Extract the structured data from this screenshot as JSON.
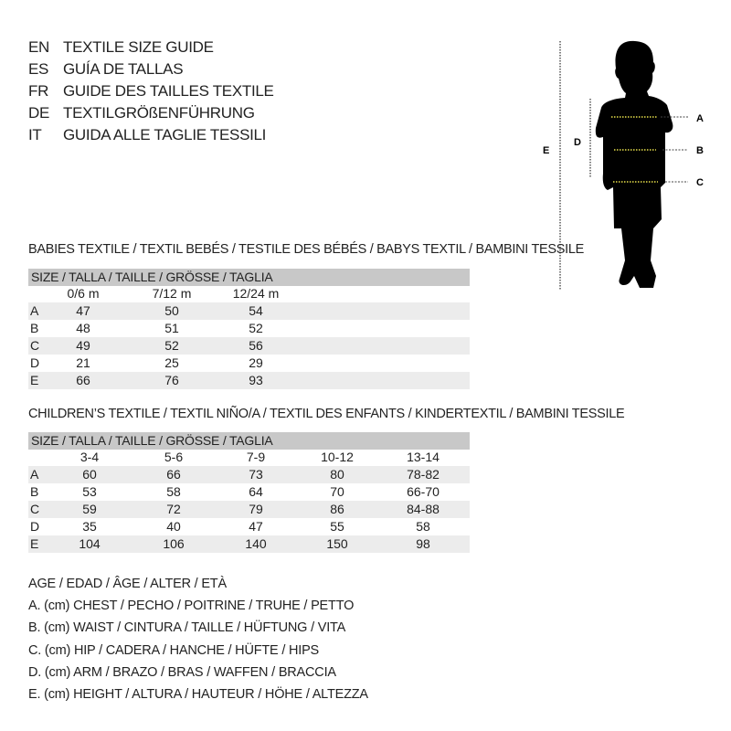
{
  "titles": [
    {
      "code": "EN",
      "text": "TEXTILE SIZE GUIDE"
    },
    {
      "code": "ES",
      "text": "GUÍA DE TALLAS"
    },
    {
      "code": "FR",
      "text": "GUIDE DES TAILLES TEXTILE"
    },
    {
      "code": "DE",
      "text": "TEXTILGRÖßENFÜHRUNG"
    },
    {
      "code": "IT",
      "text": "GUIDA ALLE TAGLIE TESSILI"
    }
  ],
  "figure": {
    "labels": {
      "A": "A",
      "B": "B",
      "C": "C",
      "D": "D",
      "E": "E"
    },
    "icon": "child-silhouette-icon",
    "marker_color": "#e8e04a"
  },
  "babies": {
    "title": "BABIES TEXTILE / TEXTIL BEBÉS / TESTILE DES BÉBÉS / BABYS TEXTIL / BAMBINI TESSILE",
    "header": "SIZE / TALLA / TAILLE / GRÖSSE / TAGLIA",
    "columns": [
      "0/6 m",
      "7/12 m",
      "12/24 m"
    ],
    "rows": [
      {
        "label": "A",
        "values": [
          "47",
          "50",
          "54"
        ]
      },
      {
        "label": "B",
        "values": [
          "48",
          "51",
          "52"
        ]
      },
      {
        "label": "C",
        "values": [
          "49",
          "52",
          "56"
        ]
      },
      {
        "label": "D",
        "values": [
          "21",
          "25",
          "29"
        ]
      },
      {
        "label": "E",
        "values": [
          "66",
          "76",
          "93"
        ]
      }
    ]
  },
  "children": {
    "title": "CHILDREN’S TEXTILE / TEXTIL NIÑO/A / TEXTIL DES ENFANTS / KINDERTEXTIL / BAMBINI TESSILE",
    "header": "SIZE / TALLA / TAILLE / GRÖSSE / TAGLIA",
    "columns": [
      "3-4",
      "5-6",
      "7-9",
      "10-12",
      "13-14"
    ],
    "rows": [
      {
        "label": "A",
        "values": [
          "60",
          "66",
          "73",
          "80",
          "78-82"
        ]
      },
      {
        "label": "B",
        "values": [
          "53",
          "58",
          "64",
          "70",
          "66-70"
        ]
      },
      {
        "label": "C",
        "values": [
          "59",
          "72",
          "79",
          "86",
          "84-88"
        ]
      },
      {
        "label": "D",
        "values": [
          "35",
          "40",
          "47",
          "55",
          "58"
        ]
      },
      {
        "label": "E",
        "values": [
          "104",
          "106",
          "140",
          "150",
          "98"
        ]
      }
    ]
  },
  "legend": [
    "AGE / EDAD / ÂGE / ALTER / ETÀ",
    "A. (cm) CHEST / PECHO / POITRINE / TRUHE / PETTO",
    "B. (cm) WAIST / CINTURA / TAILLE / HÜFTUNG / VITA",
    "C. (cm) HIP / CADERA / HANCHE / HÜFTE / HIPS",
    "D. (cm) ARM / BRAZO / BRAS / WAFFEN / BRACCIA",
    "E. (cm) HEIGHT / ALTURA / HAUTEUR / HÖHE / ALTEZZA"
  ]
}
